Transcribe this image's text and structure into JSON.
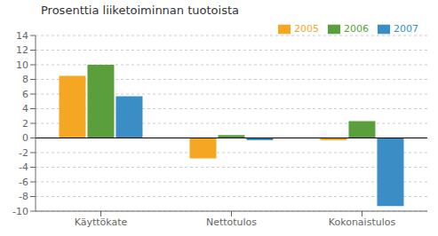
{
  "chart_data": {
    "type": "bar",
    "title": "Prosenttia liiketoiminnan tuotoista",
    "categories": [
      "Käyttökate",
      "Nettotulos",
      "Kokonaistulos"
    ],
    "series": [
      {
        "name": "2005",
        "color": "#F5A623",
        "values": [
          8.5,
          -2.8,
          -0.3
        ]
      },
      {
        "name": "2006",
        "color": "#5B9E3C",
        "values": [
          10.0,
          0.4,
          2.3
        ]
      },
      {
        "name": "2007",
        "color": "#3A8DC5",
        "values": [
          5.7,
          -0.3,
          -9.3
        ]
      }
    ],
    "ylim": [
      -10,
      14
    ],
    "yticks": [
      -10,
      -8,
      -6,
      -4,
      -2,
      0,
      2,
      4,
      6,
      8,
      10,
      12,
      14
    ],
    "grid": true,
    "legend": "upper right"
  }
}
